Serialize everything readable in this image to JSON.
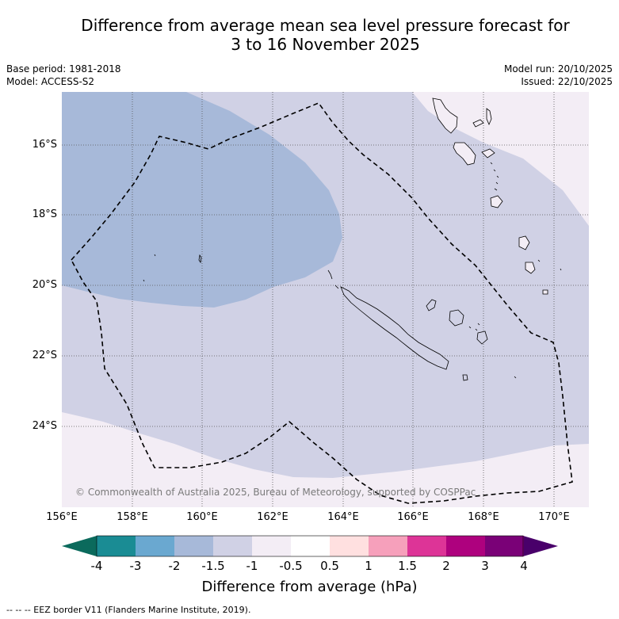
{
  "title_line1": "Difference from average mean sea level pressure forecast for",
  "title_line2": "3 to 16 November 2025",
  "base_period": "Base period: 1981-2018",
  "model": "Model: ACCESS-S2",
  "model_run": "Model run: 20/10/2025",
  "issued": "Issued: 22/10/2025",
  "copyright": "© Commonwealth of Australia 2025, Bureau of Meteorology, supported by COSPPac",
  "lat_labels": [
    "16°S",
    "18°S",
    "20°S",
    "22°S",
    "24°S"
  ],
  "lon_labels": [
    "156°E",
    "158°E",
    "160°E",
    "162°E",
    "164°E",
    "166°E",
    "168°E",
    "170°E"
  ],
  "colorbar": {
    "ticks": [
      "-4",
      "-3",
      "-2",
      "-1.5",
      "-1",
      "-0.5",
      "0.5",
      "1",
      "1.5",
      "2",
      "3",
      "4"
    ],
    "colors": [
      "#1a8c94",
      "#6aa8d0",
      "#a7b9d9",
      "#d0d1e5",
      "#f3edf5",
      "#ffffff",
      "#ffe0e0",
      "#f6a0bb",
      "#dd3497",
      "#ae017e",
      "#7a0177"
    ],
    "under_color": "#0b6a5c",
    "over_color": "#49006a",
    "title": "Difference from average (hPa)"
  },
  "eez_legend": "-- -- -- EEZ border V11 (Flanders Marine Institute, 2019)."
}
